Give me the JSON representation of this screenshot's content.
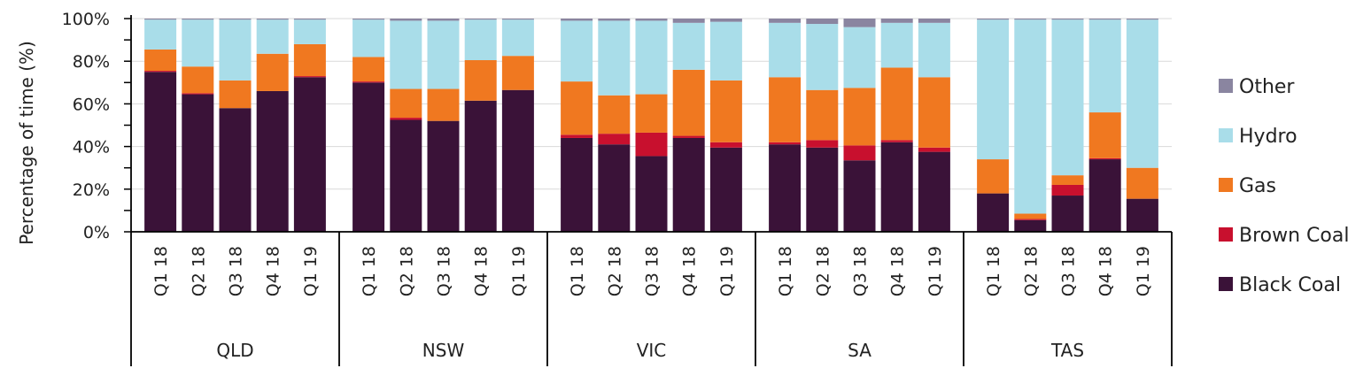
{
  "chart_data": {
    "type": "bar",
    "stacked": true,
    "ylabel": "Percentage of time (%)",
    "ylim": [
      0,
      100
    ],
    "yticks": [
      "0%",
      "20%",
      "40%",
      "60%",
      "80%",
      "100%"
    ],
    "grid": true,
    "legend_position": "right",
    "groups": [
      {
        "name": "QLD",
        "categories": [
          "Q1 18",
          "Q2 18",
          "Q3 18",
          "Q4 18",
          "Q1 19"
        ]
      },
      {
        "name": "NSW",
        "categories": [
          "Q1 18",
          "Q2 18",
          "Q3 18",
          "Q4 18",
          "Q1 19"
        ]
      },
      {
        "name": "VIC",
        "categories": [
          "Q1 18",
          "Q2 18",
          "Q3 18",
          "Q4 18",
          "Q1 19"
        ]
      },
      {
        "name": "SA",
        "categories": [
          "Q1 18",
          "Q2 18",
          "Q3 18",
          "Q4 18",
          "Q1 19"
        ]
      },
      {
        "name": "TAS",
        "categories": [
          "Q1 18",
          "Q2 18",
          "Q3 18",
          "Q4 18",
          "Q1 19"
        ]
      }
    ],
    "series": [
      {
        "name": "Black Coal",
        "color": "#3a1238",
        "values": [
          75,
          64.5,
          58,
          66,
          72.5,
          70,
          52.5,
          52,
          61.5,
          66.5,
          44,
          41,
          35.5,
          44,
          39.5,
          41,
          39.5,
          33.5,
          42,
          37.5,
          18,
          5.5,
          17,
          34,
          15.5
        ]
      },
      {
        "name": "Brown Coal",
        "color": "#c8102e",
        "values": [
          0.5,
          0.5,
          0,
          0,
          0.5,
          0.5,
          1,
          0,
          0,
          0,
          1.5,
          5,
          11,
          1,
          2.5,
          1,
          3.5,
          7,
          1,
          2,
          0,
          0.5,
          5,
          0.5,
          0
        ]
      },
      {
        "name": "Gas",
        "color": "#f07820",
        "values": [
          10,
          12.5,
          13,
          17.5,
          15,
          11.5,
          13.5,
          15,
          19,
          16,
          25,
          18,
          18,
          31,
          29,
          30.5,
          23.5,
          27,
          34,
          33,
          16,
          2.5,
          4.5,
          21.5,
          14.5
        ]
      },
      {
        "name": "Hydro",
        "color": "#a9dde9",
        "values": [
          14,
          22,
          28.5,
          16,
          11.5,
          17.5,
          32,
          32,
          19,
          17,
          28.5,
          35,
          34.5,
          22,
          27.5,
          25.5,
          31,
          28.5,
          21,
          25.5,
          65.5,
          91,
          73,
          43.5,
          69.5
        ]
      },
      {
        "name": "Other",
        "color": "#8a85a0",
        "values": [
          0.5,
          0.5,
          0.5,
          0.5,
          0.5,
          0.5,
          1,
          1,
          0.5,
          0.5,
          1,
          1,
          1,
          2,
          1.5,
          2,
          2.5,
          4,
          2,
          2,
          0.5,
          0.5,
          0.5,
          0.5,
          0.5
        ]
      }
    ]
  }
}
